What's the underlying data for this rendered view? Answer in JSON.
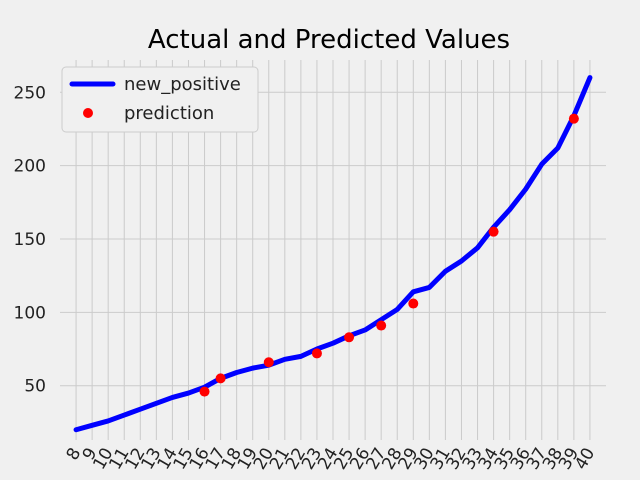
{
  "chart_data": {
    "type": "line",
    "title": "Actual and Predicted Values",
    "xlabel": "",
    "ylabel": "",
    "x": [
      8,
      9,
      10,
      11,
      12,
      13,
      14,
      15,
      16,
      17,
      18,
      19,
      20,
      21,
      22,
      23,
      24,
      25,
      26,
      27,
      28,
      29,
      30,
      31,
      32,
      33,
      34,
      35,
      36,
      37,
      38,
      39,
      40
    ],
    "x_tick_labels": [
      "8",
      "9",
      "10",
      "11",
      "12",
      "13",
      "14",
      "15",
      "16",
      "17",
      "18",
      "19",
      "20",
      "21",
      "22",
      "23",
      "24",
      "25",
      "26",
      "27",
      "28",
      "29",
      "30",
      "31",
      "32",
      "33",
      "34",
      "35",
      "36",
      "37",
      "38",
      "39",
      "40"
    ],
    "y_ticks": [
      50,
      100,
      150,
      200,
      250
    ],
    "xlim": [
      7.0,
      41.0
    ],
    "ylim": [
      13,
      272
    ],
    "grid": true,
    "legend_position": "top-left",
    "series": [
      {
        "name": "new_positive",
        "kind": "line",
        "color": "#0000ff",
        "x": [
          8,
          9,
          10,
          11,
          12,
          13,
          14,
          15,
          16,
          17,
          18,
          19,
          20,
          21,
          22,
          23,
          24,
          25,
          26,
          27,
          28,
          29,
          30,
          31,
          32,
          33,
          34,
          35,
          36,
          37,
          38,
          39,
          40
        ],
        "values": [
          20,
          23,
          26,
          30,
          34,
          38,
          42,
          45,
          49,
          55,
          59,
          62,
          64,
          68,
          70,
          75,
          79,
          84,
          88,
          95,
          102,
          114,
          117,
          128,
          135,
          144,
          158,
          170,
          184,
          201,
          212,
          234,
          260
        ]
      },
      {
        "name": "prediction",
        "kind": "scatter",
        "color": "#ff0000",
        "x": [
          16,
          17,
          20,
          23,
          25,
          27,
          29,
          34,
          39
        ],
        "values": [
          46,
          55,
          66,
          72,
          83,
          91,
          106,
          155,
          232
        ]
      }
    ]
  }
}
